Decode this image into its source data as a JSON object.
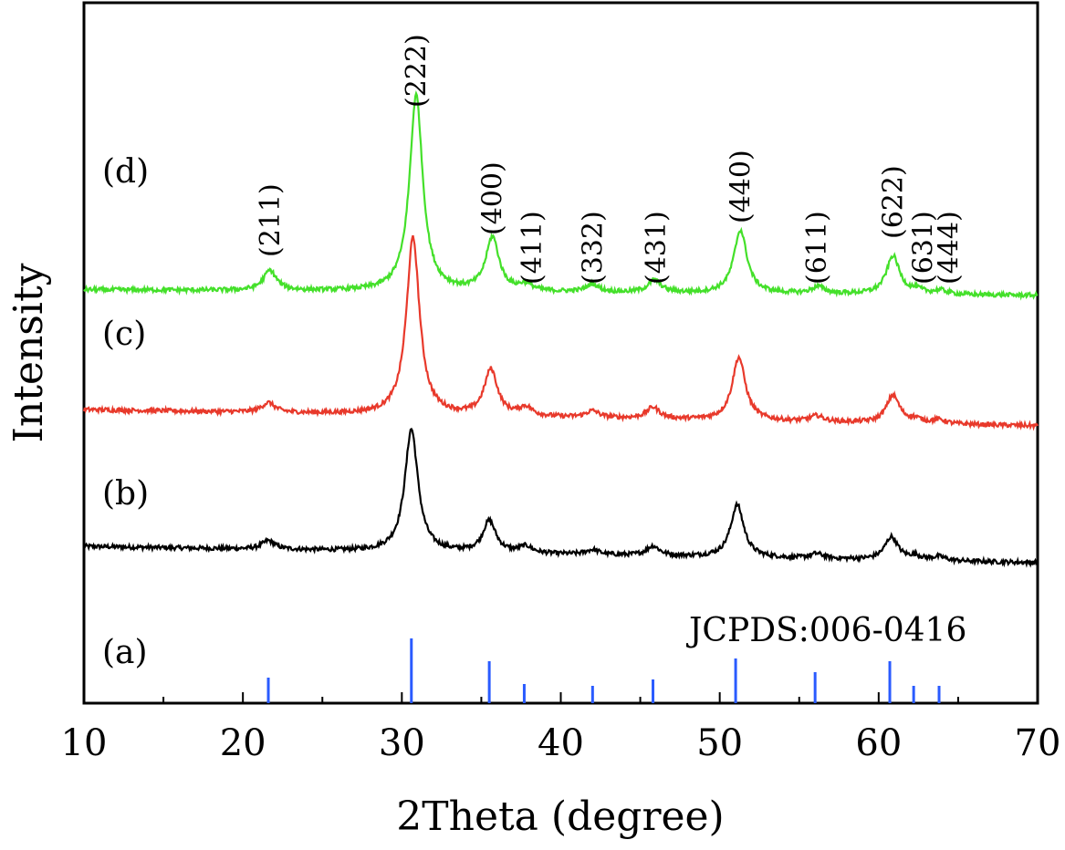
{
  "chart_data": {
    "type": "line",
    "title": "",
    "xlabel": "2Theta (degree)",
    "ylabel": "Intensity",
    "xlim": [
      10,
      70
    ],
    "xticks": [
      10,
      20,
      30,
      40,
      50,
      60,
      70
    ],
    "grid": false,
    "reference": {
      "label": "(a)",
      "annotation": "JCPDS:006-0416",
      "color": "#2a5bff",
      "lines": [
        {
          "x": 21.6,
          "h": 0.28
        },
        {
          "x": 30.6,
          "h": 0.71
        },
        {
          "x": 35.5,
          "h": 0.46
        },
        {
          "x": 37.7,
          "h": 0.21
        },
        {
          "x": 42.0,
          "h": 0.19
        },
        {
          "x": 45.8,
          "h": 0.26
        },
        {
          "x": 51.0,
          "h": 0.49
        },
        {
          "x": 56.0,
          "h": 0.34
        },
        {
          "x": 60.7,
          "h": 0.46
        },
        {
          "x": 62.2,
          "h": 0.19
        },
        {
          "x": 63.8,
          "h": 0.19
        }
      ]
    },
    "series": [
      {
        "label": "(b)",
        "color": "#000000",
        "baseline_start": 0.17,
        "baseline_end": 0.0,
        "peaks": [
          {
            "x": 21.6,
            "h": 0.09
          },
          {
            "x": 30.6,
            "h": 1.28
          },
          {
            "x": 35.5,
            "h": 0.33
          },
          {
            "x": 37.8,
            "h": 0.07
          },
          {
            "x": 42.0,
            "h": 0.05
          },
          {
            "x": 45.8,
            "h": 0.1
          },
          {
            "x": 51.1,
            "h": 0.55
          },
          {
            "x": 56.1,
            "h": 0.05
          },
          {
            "x": 60.8,
            "h": 0.24
          },
          {
            "x": 62.3,
            "h": 0.04
          },
          {
            "x": 63.8,
            "h": 0.04
          }
        ]
      },
      {
        "label": "(c)",
        "color": "#e8392b",
        "baseline_start": 0.17,
        "baseline_end": 0.0,
        "peaks": [
          {
            "x": 21.6,
            "h": 0.1
          },
          {
            "x": 30.7,
            "h": 1.85
          },
          {
            "x": 35.6,
            "h": 0.48
          },
          {
            "x": 37.8,
            "h": 0.09
          },
          {
            "x": 42.0,
            "h": 0.07
          },
          {
            "x": 45.8,
            "h": 0.12
          },
          {
            "x": 51.2,
            "h": 0.66
          },
          {
            "x": 56.1,
            "h": 0.06
          },
          {
            "x": 60.9,
            "h": 0.29
          },
          {
            "x": 62.3,
            "h": 0.04
          },
          {
            "x": 63.8,
            "h": 0.04
          }
        ]
      },
      {
        "label": "(d)",
        "color": "#44e02a",
        "baseline_start": 0.06,
        "baseline_end": 0.0,
        "peaks": [
          {
            "x": 21.7,
            "h": 0.21
          },
          {
            "x": 30.9,
            "h": 2.05
          },
          {
            "x": 35.7,
            "h": 0.56
          },
          {
            "x": 37.8,
            "h": 0.07
          },
          {
            "x": 42.0,
            "h": 0.08
          },
          {
            "x": 45.9,
            "h": 0.13
          },
          {
            "x": 51.3,
            "h": 0.66
          },
          {
            "x": 56.2,
            "h": 0.07
          },
          {
            "x": 60.9,
            "h": 0.4
          },
          {
            "x": 62.4,
            "h": 0.04
          },
          {
            "x": 63.9,
            "h": 0.04
          }
        ]
      }
    ],
    "peak_labels": [
      {
        "text": "(211)",
        "x": 21.7
      },
      {
        "text": "(222)",
        "x": 30.9
      },
      {
        "text": "(400)",
        "x": 35.7
      },
      {
        "text": "(411)",
        "x": 38.2
      },
      {
        "text": "(332)",
        "x": 42.0
      },
      {
        "text": "(431)",
        "x": 46.0
      },
      {
        "text": "(440)",
        "x": 51.3
      },
      {
        "text": "(611)",
        "x": 56.1
      },
      {
        "text": "(622)",
        "x": 60.9
      },
      {
        "text": "(631)",
        "x": 62.8
      },
      {
        "text": "(444)",
        "x": 64.4
      }
    ]
  }
}
